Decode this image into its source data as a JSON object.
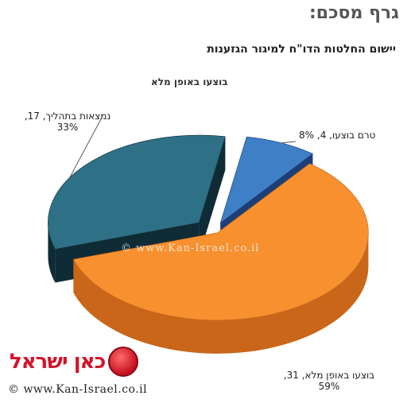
{
  "heading": "גרף מסכם:",
  "logo": {
    "text": "כאן ישראל"
  },
  "footer": {
    "credit": "© www.Kan-Israel.co.il"
  },
  "watermark": {
    "text": "© www.Kan-Israel.co.il"
  },
  "chart_data": {
    "type": "pie",
    "title": "יישום החלטות הדו\"ח למיגור הגזענות",
    "legend": [
      "בוצעו באופן מלא"
    ],
    "slices": [
      {
        "label": "בוצעו באופן מלא",
        "value": 31,
        "percent": "59%",
        "label_text": "בוצעו באופן מלא, 31,",
        "color": "#f7902f",
        "side": "#c9661a"
      },
      {
        "label": "נמצאות בתהליך",
        "value": 17,
        "percent": "33%",
        "label_text": "נמצאות בתהליך, 17,",
        "color": "#2e7086",
        "side": "#0f2c36"
      },
      {
        "label": "טרם בוצעו",
        "value": 4,
        "percent": "8%",
        "label_text": "טרם בוצעו, 4, 8%",
        "color": "#3f7fc6",
        "side": "#1d3f75"
      }
    ]
  }
}
